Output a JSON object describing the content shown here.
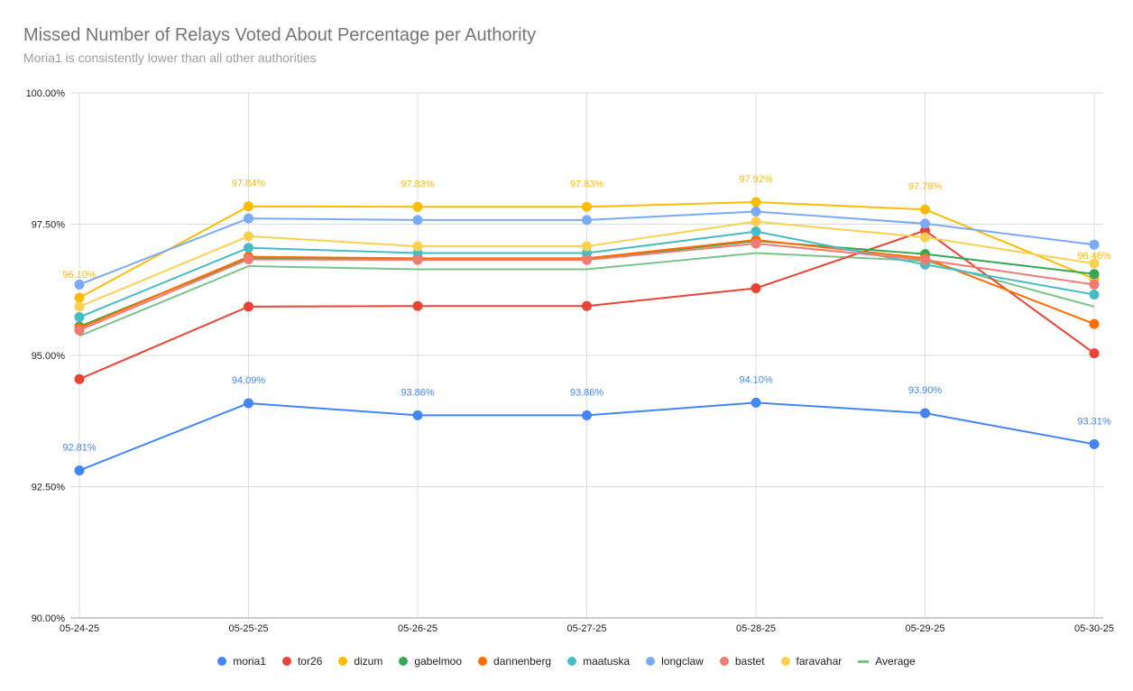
{
  "chart_data": {
    "type": "line",
    "title": "Missed Number of Relays Voted About Percentage per Authority",
    "subtitle": "Moria1 is consistently lower than all other authorities",
    "xlabel": "",
    "ylabel": "",
    "categories": [
      "05-24-25",
      "05-25-25",
      "05-26-25",
      "05-27-25",
      "05-28-25",
      "05-29-25",
      "05-30-25"
    ],
    "ylim": [
      90,
      100
    ],
    "yticks": [
      90,
      92.5,
      95,
      97.5,
      100
    ],
    "ytick_labels": [
      "90.00%",
      "92.50%",
      "95.00%",
      "97.50%",
      "100.00%"
    ],
    "grid": true,
    "legend_position": "bottom",
    "series": [
      {
        "name": "moria1",
        "color": "#4285f4",
        "marker": "dot",
        "values": [
          92.81,
          94.09,
          93.86,
          93.86,
          94.1,
          93.9,
          93.31
        ],
        "labels": [
          "92.81%",
          "94.09%",
          "93.86%",
          "93.86%",
          "94.10%",
          "93.90%",
          "93.31%"
        ]
      },
      {
        "name": "tor26",
        "color": "#ea4335",
        "marker": "dot",
        "values": [
          94.55,
          95.93,
          95.94,
          95.94,
          96.28,
          97.38,
          95.04
        ]
      },
      {
        "name": "dizum",
        "color": "#fbbc04",
        "marker": "dot",
        "values": [
          96.1,
          97.84,
          97.83,
          97.83,
          97.92,
          97.78,
          96.46
        ],
        "labels": [
          "96.10%",
          "97.84%",
          "97.83%",
          "97.83%",
          "97.92%",
          "97.78%",
          "96.46%"
        ]
      },
      {
        "name": "gabelmoo",
        "color": "#34a853",
        "marker": "dot",
        "values": [
          95.55,
          96.85,
          96.83,
          96.83,
          97.18,
          96.93,
          96.55
        ]
      },
      {
        "name": "dannenberg",
        "color": "#ff6d01",
        "marker": "dot",
        "values": [
          95.52,
          96.88,
          96.85,
          96.85,
          97.2,
          96.85,
          95.6
        ]
      },
      {
        "name": "maatuska",
        "color": "#46bdc6",
        "marker": "dot",
        "values": [
          95.73,
          97.05,
          96.95,
          96.95,
          97.36,
          96.73,
          96.16
        ]
      },
      {
        "name": "longclaw",
        "color": "#7baaf7",
        "marker": "dot",
        "values": [
          96.35,
          97.61,
          97.58,
          97.58,
          97.74,
          97.51,
          97.11
        ]
      },
      {
        "name": "bastet",
        "color": "#f07b72",
        "marker": "dot",
        "values": [
          95.48,
          96.83,
          96.82,
          96.82,
          97.13,
          96.82,
          96.35
        ]
      },
      {
        "name": "faravahar",
        "color": "#fcd04f",
        "marker": "dot",
        "values": [
          95.93,
          97.27,
          97.08,
          97.08,
          97.55,
          97.25,
          96.75
        ]
      },
      {
        "name": "Average",
        "color": "#7ac48a",
        "marker": "line",
        "values": [
          95.37,
          96.7,
          96.64,
          96.64,
          96.95,
          96.8,
          95.93
        ]
      }
    ]
  }
}
